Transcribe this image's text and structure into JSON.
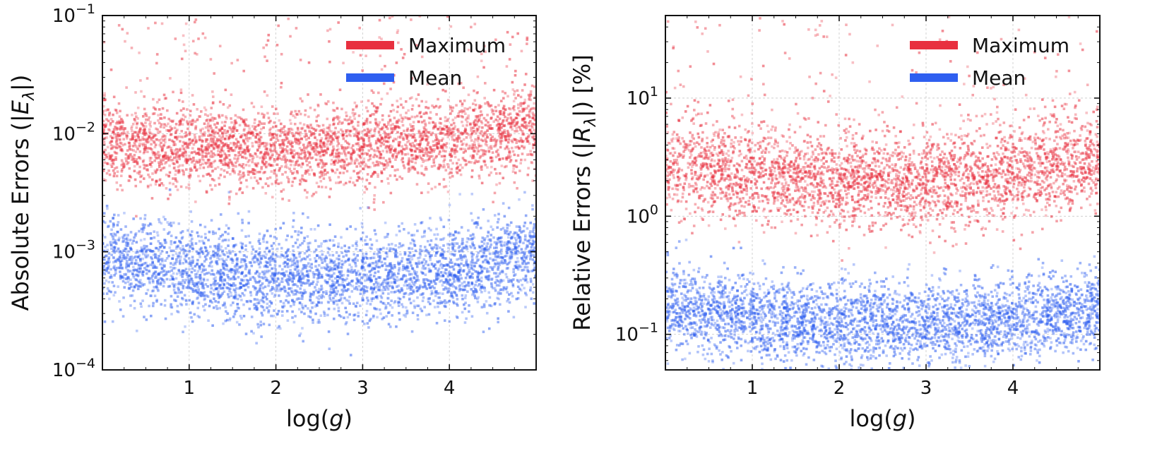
{
  "chart_data": [
    {
      "type": "scatter",
      "xlabel_prefix": "log(",
      "xlabel_var": "g",
      "xlabel_suffix": ")",
      "ylabel_prefix": "Absolute Errors (|",
      "ylabel_var": "E",
      "ylabel_sub": "λ",
      "ylabel_suffix": "|)",
      "xlim": [
        0,
        5
      ],
      "ylim": [
        0.0001,
        0.1
      ],
      "yscale": "log",
      "x_ticks": [
        {
          "value": 1,
          "label": "1"
        },
        {
          "value": 2,
          "label": "2"
        },
        {
          "value": 3,
          "label": "3"
        },
        {
          "value": 4,
          "label": "4"
        }
      ],
      "y_ticks": [
        {
          "value": 0.0001,
          "base": "10",
          "exp": "−4"
        },
        {
          "value": 0.001,
          "base": "10",
          "exp": "−3"
        },
        {
          "value": 0.01,
          "base": "10",
          "exp": "−2"
        },
        {
          "value": 0.1,
          "base": "10",
          "exp": "−1"
        }
      ],
      "grid": true,
      "legend_position": "top-right",
      "series": [
        {
          "name": "Maximum",
          "color": "#e8303f",
          "center_at_x": [
            [
              0,
              0.0085
            ],
            [
              2.5,
              0.0075
            ],
            [
              5,
              0.011
            ]
          ],
          "approx_range": [
            0.004,
            0.03
          ],
          "outliers_up_to": 0.1
        },
        {
          "name": "Mean",
          "color": "#2f5ff0",
          "center_at_x": [
            [
              0,
              0.0009
            ],
            [
              2.5,
              0.0006
            ],
            [
              5,
              0.0009
            ]
          ],
          "approx_range": [
            0.0003,
            0.003
          ]
        }
      ]
    },
    {
      "type": "scatter",
      "xlabel_prefix": "log(",
      "xlabel_var": "g",
      "xlabel_suffix": ")",
      "ylabel_prefix": "Relative Errors (|",
      "ylabel_var": "R",
      "ylabel_sub": "λ",
      "ylabel_suffix": "|) [%]",
      "xlim": [
        0,
        5
      ],
      "ylim": [
        0.05,
        50
      ],
      "yscale": "log",
      "x_ticks": [
        {
          "value": 1,
          "label": "1"
        },
        {
          "value": 2,
          "label": "2"
        },
        {
          "value": 3,
          "label": "3"
        },
        {
          "value": 4,
          "label": "4"
        }
      ],
      "y_ticks": [
        {
          "value": 0.1,
          "base": "10",
          "exp": "−1"
        },
        {
          "value": 1,
          "base": "10",
          "exp": "0"
        },
        {
          "value": 10,
          "base": "10",
          "exp": "1"
        }
      ],
      "grid": true,
      "legend_position": "top-right",
      "series": [
        {
          "name": "Maximum",
          "color": "#e8303f",
          "center_at_x": [
            [
              0,
              2.8
            ],
            [
              2.5,
              2.0
            ],
            [
              5,
              3.0
            ]
          ],
          "approx_range": [
            0.9,
            10
          ],
          "outliers_up_to": 50
        },
        {
          "name": "Mean",
          "color": "#2f5ff0",
          "center_at_x": [
            [
              0,
              0.17
            ],
            [
              2.5,
              0.12
            ],
            [
              5,
              0.17
            ]
          ],
          "approx_range": [
            0.06,
            0.5
          ]
        }
      ]
    }
  ]
}
